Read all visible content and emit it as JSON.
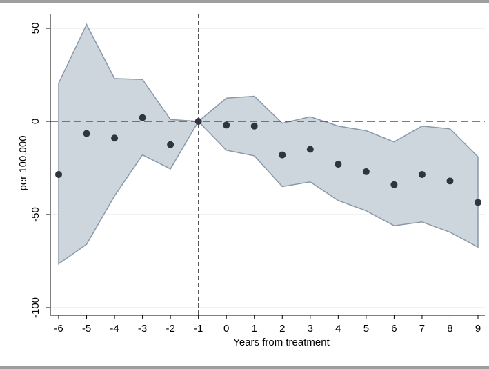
{
  "chart_data": {
    "type": "scatter",
    "title": "",
    "xlabel": "Years from treatment",
    "ylabel": "per 100,000",
    "xlim": [
      -6,
      9
    ],
    "ylim": [
      -100,
      50
    ],
    "x_ticks": [
      -6,
      -5,
      -4,
      -3,
      -2,
      -1,
      0,
      1,
      2,
      3,
      4,
      5,
      6,
      7,
      8,
      9
    ],
    "y_ticks": [
      -100,
      -50,
      0,
      50
    ],
    "reference_lines": {
      "x": -1,
      "y": 0,
      "style": "dashed"
    },
    "grid": "horizontal",
    "legend": "none",
    "colors": {
      "points": "#2e3540",
      "ci_fill": "#cdd5dd",
      "ci_edge": "#8a98a8",
      "grid": "#e8ecef",
      "frame_bar": "#9e9e9e"
    },
    "series": [
      {
        "type": "scatter",
        "x": [
          -6,
          -5,
          -4,
          -3,
          -2,
          -1,
          0,
          1,
          2,
          3,
          4,
          5,
          6,
          7,
          8,
          9
        ],
        "y": [
          -28.5,
          -6.5,
          -9,
          2,
          -12.5,
          0,
          -2,
          -2.5,
          -18,
          -15,
          -23,
          -27,
          -34,
          -28.5,
          -32,
          -43.5
        ]
      },
      {
        "type": "area",
        "x": [
          -6,
          -5,
          -4,
          -3,
          -2,
          -1,
          0,
          1,
          2,
          3,
          4,
          5,
          6,
          7,
          8,
          9
        ],
        "y_upper": [
          20.5,
          52,
          23,
          22.5,
          1,
          0,
          12.5,
          13.5,
          -1,
          2.5,
          -2.5,
          -5,
          -11,
          -2.5,
          -4,
          -19
        ],
        "y_lower": [
          -76.5,
          -66,
          -40,
          -18,
          -25.5,
          0,
          -15.5,
          -18.5,
          -35,
          -32.5,
          -42.5,
          -48,
          -56,
          -54,
          -59.5,
          -67.5
        ]
      }
    ]
  }
}
